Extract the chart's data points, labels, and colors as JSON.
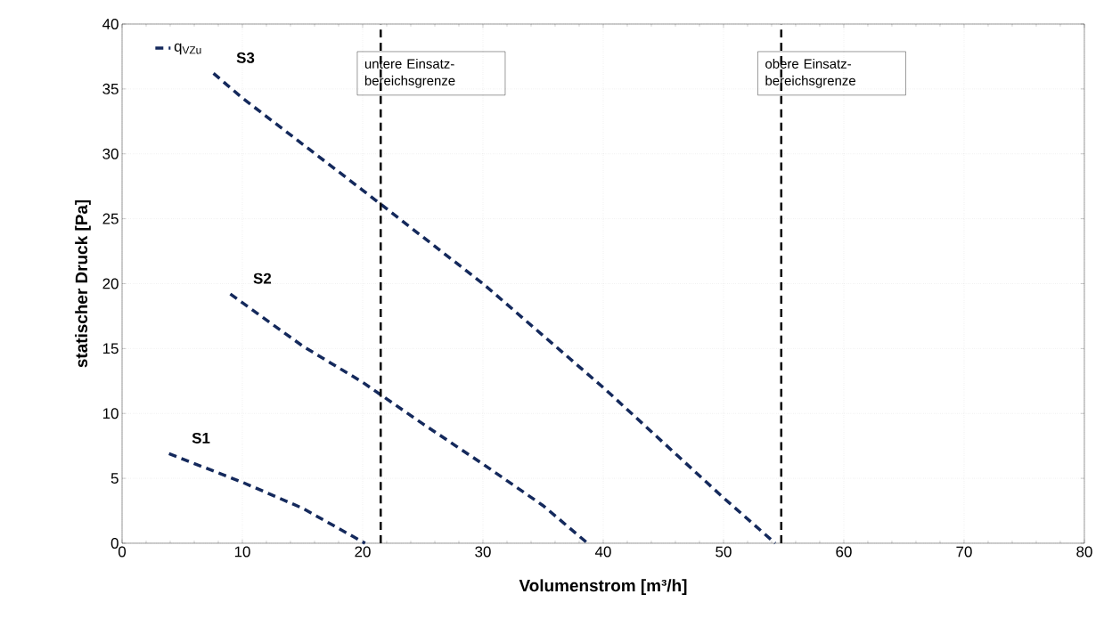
{
  "chart_data": {
    "type": "line",
    "xlabel": "Volumenstrom [m³/h]",
    "ylabel": "statischer Druck [Pa]",
    "xlim": [
      0,
      80
    ],
    "ylim": [
      0,
      40
    ],
    "xticks": [
      0,
      10,
      20,
      30,
      40,
      50,
      60,
      70,
      80
    ],
    "yticks": [
      0,
      5,
      10,
      15,
      20,
      25,
      30,
      35,
      40
    ],
    "grid": true,
    "legend": "top left",
    "line_style": "dashed",
    "marker": "none",
    "series": [
      {
        "name": "S1",
        "color": "#14295c",
        "x": [
          3.9,
          10,
          15,
          20.2
        ],
        "values": [
          6.9,
          4.7,
          2.7,
          0
        ]
      },
      {
        "name": "S2",
        "color": "#14295c",
        "x": [
          9,
          15,
          20,
          25,
          30,
          35,
          38.7
        ],
        "values": [
          19.2,
          15.2,
          12.4,
          9.2,
          6.1,
          2.9,
          0
        ]
      },
      {
        "name": "S3",
        "color": "#14295c",
        "x": [
          7.6,
          10,
          20,
          30,
          40,
          50,
          54.3
        ],
        "values": [
          36.2,
          34.3,
          27.2,
          20,
          12,
          3.5,
          0
        ]
      }
    ],
    "legend_title": "q$_{VZu}$",
    "ref_lines": [
      {
        "axis": "x",
        "value": 21.5,
        "label": "untere Einsatz-bereichsgrenze",
        "color": "#000000",
        "line_style": "dashed"
      },
      {
        "axis": "x",
        "value": 54.8,
        "label": "obere Einsatz-bereichsgrenze",
        "color": "#000000",
        "line_style": "dashed"
      }
    ]
  }
}
